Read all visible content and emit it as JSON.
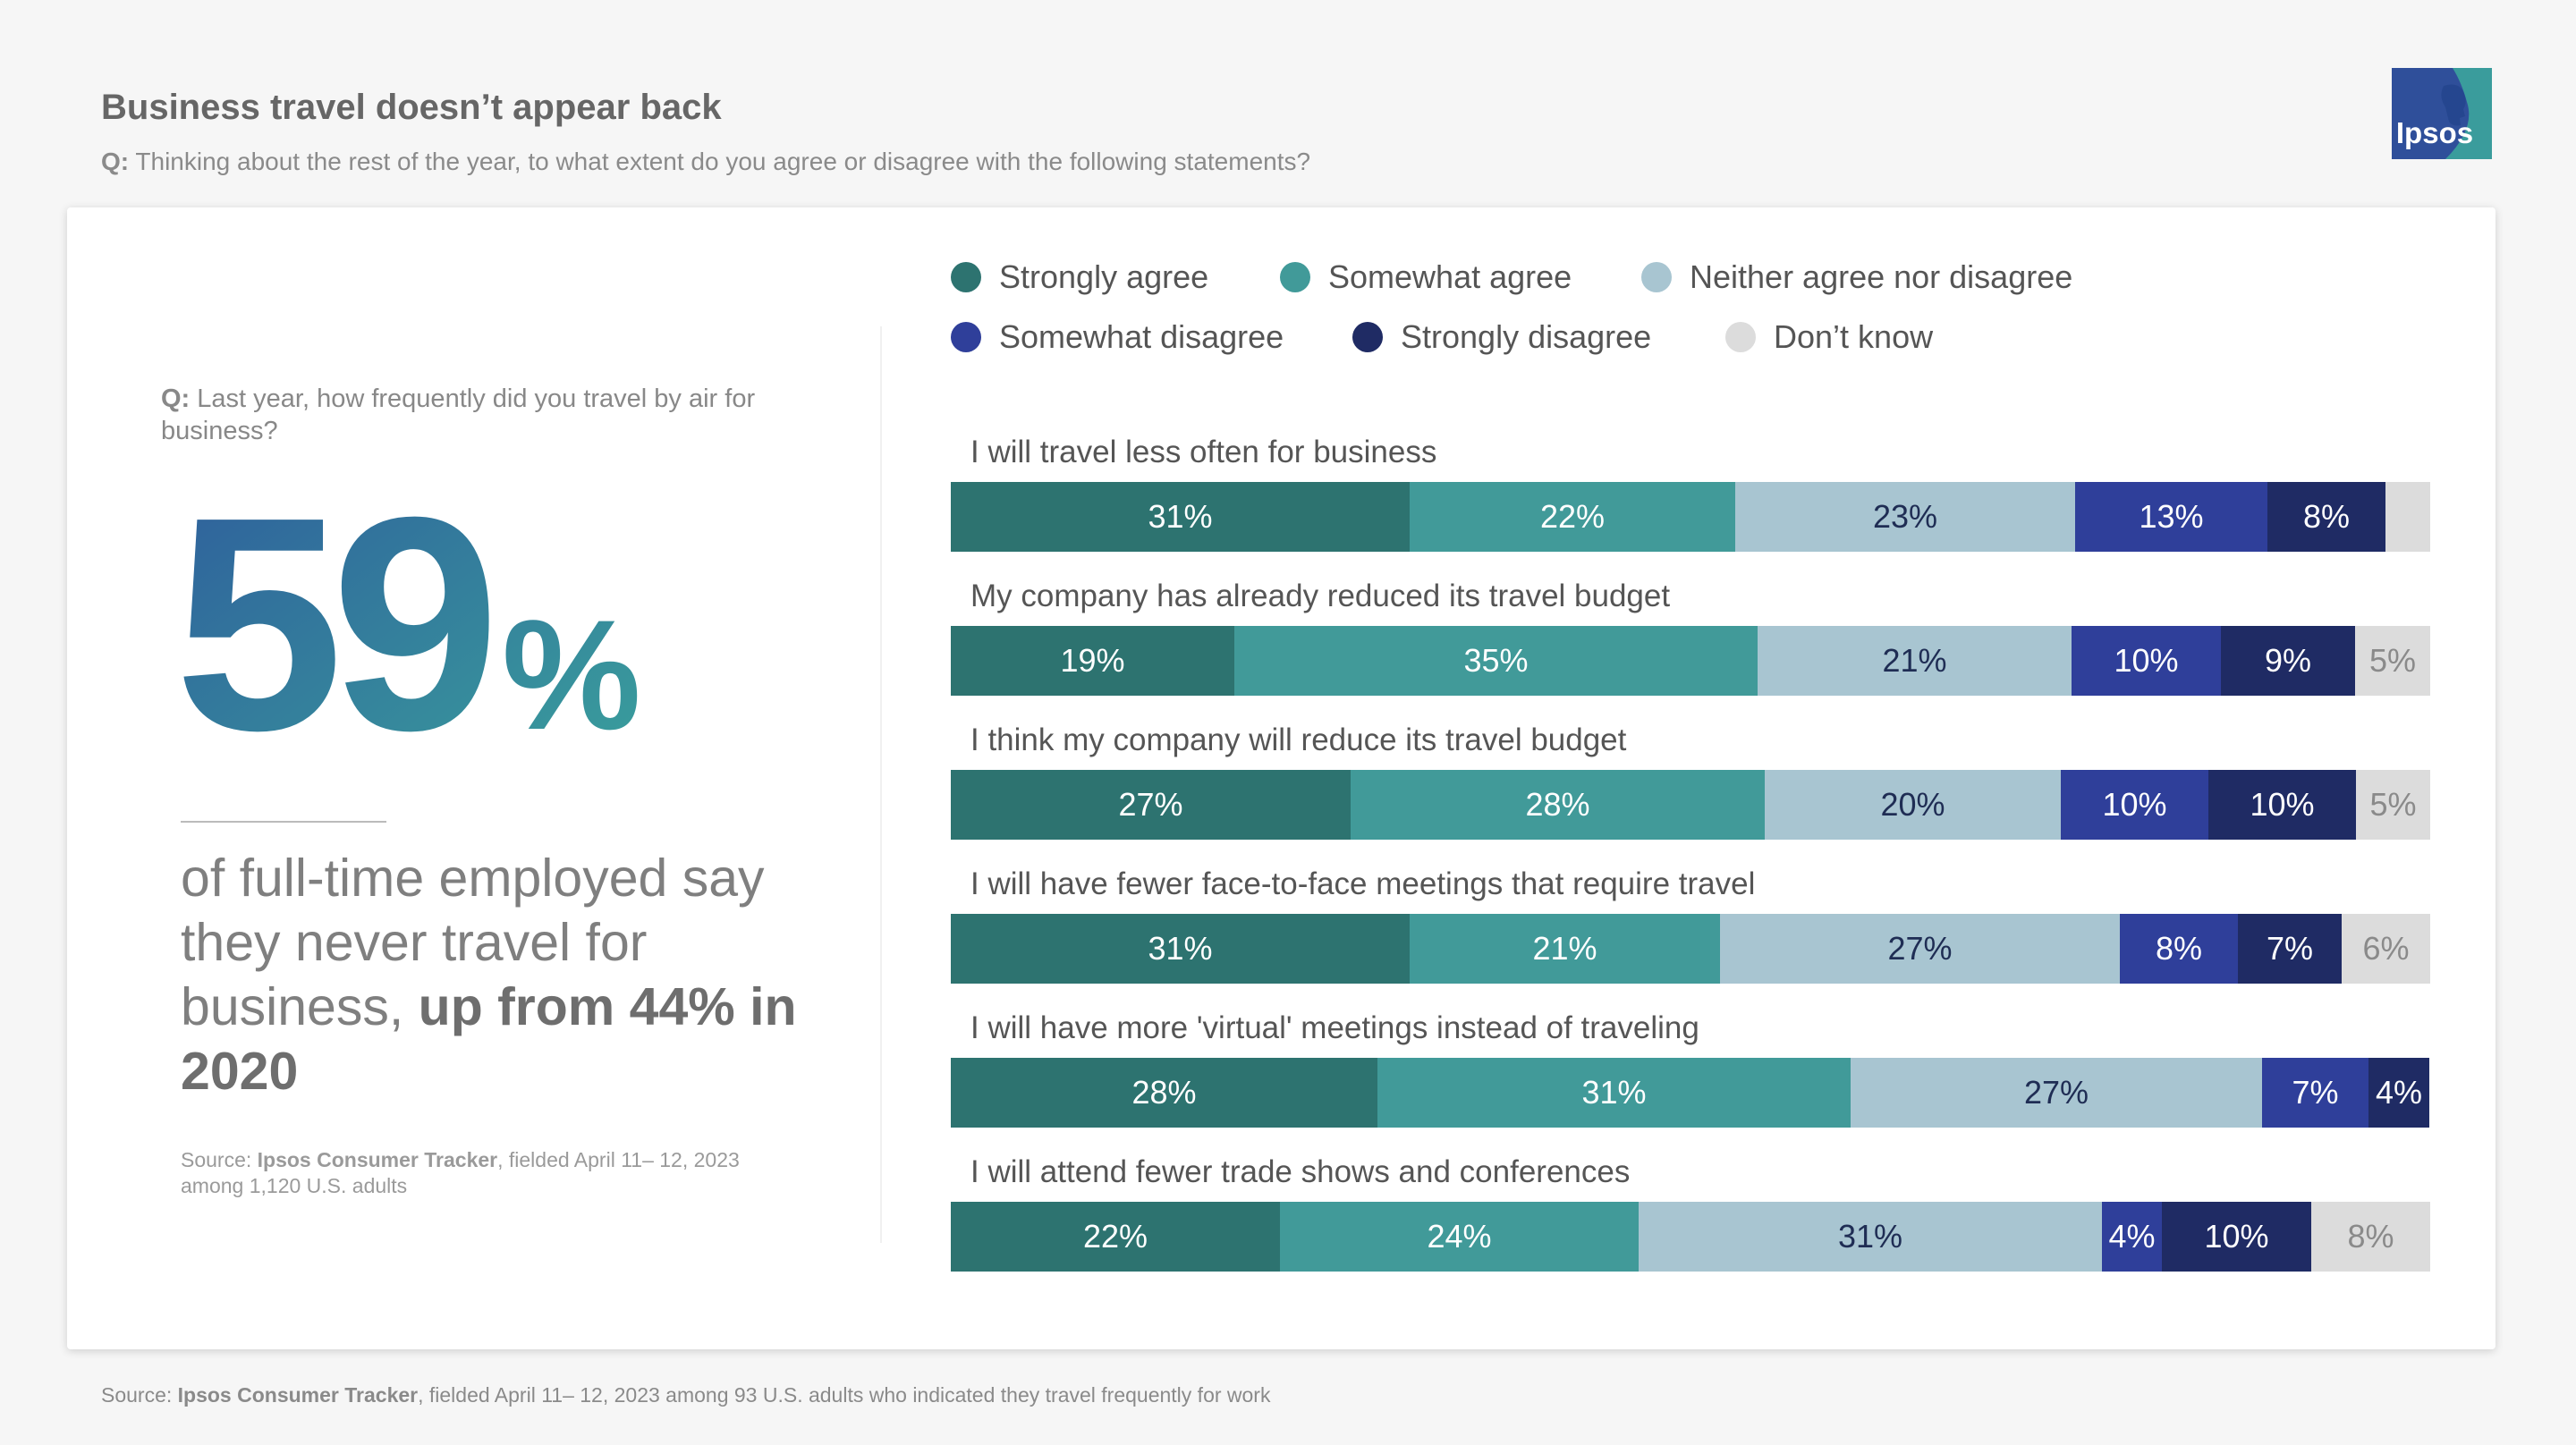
{
  "header": {
    "title": "Business travel doesn’t appear back",
    "question_prefix": "Q:",
    "question_text": "Thinking about the rest of the year, to what extent do you agree or disagree with the following statements?"
  },
  "logo": {
    "icon": "ipsos-logo-icon",
    "text": "Ipsos",
    "colors": {
      "dark": "#2f4f9a",
      "teal": "#3a9c9c"
    }
  },
  "left_panel": {
    "question_prefix": "Q:",
    "question_text": "Last year, how frequently did you travel by air for business?",
    "big_stat": {
      "number": "59",
      "percent_sign": "%",
      "gradient_from": "#2e5d9c",
      "gradient_to": "#3aa19c"
    },
    "description": "of full-time employed say they never travel for business,",
    "description_bold": "up from 44% in 2020",
    "source_label": "Source:",
    "source_name": "Ipsos Consumer Tracker",
    "source_rest": ", fielded April 11– 12, 2023 among 1,120 U.S. adults"
  },
  "footer": {
    "source_label": "Source:",
    "source_name": "Ipsos Consumer Tracker",
    "source_rest": ", fielded April 11– 12, 2023 among 93 U.S. adults who indicated they travel frequently for work"
  },
  "chart_data": {
    "type": "bar",
    "orientation": "horizontal",
    "stacked": true,
    "normalized_to_percent": true,
    "title": "",
    "xlabel": "",
    "ylabel": "",
    "legend_position": "top",
    "grid": false,
    "categories": [
      "I will travel less often for business",
      "My company has already reduced its travel budget",
      "I think my company will reduce its travel budget",
      "I will have fewer face-to-face meetings that require travel",
      "I will have more 'virtual' meetings instead of traveling",
      "I will attend fewer trade shows and conferences"
    ],
    "series": [
      {
        "name": "Strongly agree",
        "color": "#2d7370",
        "label_color": "#ffffff",
        "values": [
          31,
          19,
          27,
          31,
          28,
          22
        ],
        "labels": [
          "31%",
          "19%",
          "27%",
          "31%",
          "28%",
          "22%"
        ]
      },
      {
        "name": "Somewhat agree",
        "color": "#419a99",
        "label_color": "#ffffff",
        "values": [
          22,
          35,
          28,
          21,
          31,
          24
        ],
        "labels": [
          "22%",
          "35%",
          "28%",
          "21%",
          "31%",
          "24%"
        ]
      },
      {
        "name": "Neither agree nor disagree",
        "color": "#a8c5d1",
        "label_color": "#1f2d54",
        "values": [
          23,
          21,
          20,
          27,
          27,
          31
        ],
        "labels": [
          "23%",
          "21%",
          "20%",
          "27%",
          "27%",
          "31%"
        ]
      },
      {
        "name": "Somewhat disagree",
        "color": "#2f3f9a",
        "label_color": "#ffffff",
        "values": [
          13,
          10,
          10,
          8,
          7,
          4
        ],
        "labels": [
          "13%",
          "10%",
          "10%",
          "8%",
          "7%",
          "4%"
        ]
      },
      {
        "name": "Strongly disagree",
        "color": "#1f2b64",
        "label_color": "#ffffff",
        "values": [
          8,
          9,
          10,
          7,
          4,
          10
        ],
        "labels": [
          "8%",
          "9%",
          "10%",
          "7%",
          "4%",
          "10%"
        ]
      },
      {
        "name": "Don’t know",
        "color": "#dcdcdc",
        "label_color": "#8a8a8a",
        "values": [
          3,
          5,
          5,
          6,
          0,
          8
        ],
        "labels": [
          "",
          "5%",
          "5%",
          "6%",
          "",
          "8%"
        ]
      }
    ]
  }
}
